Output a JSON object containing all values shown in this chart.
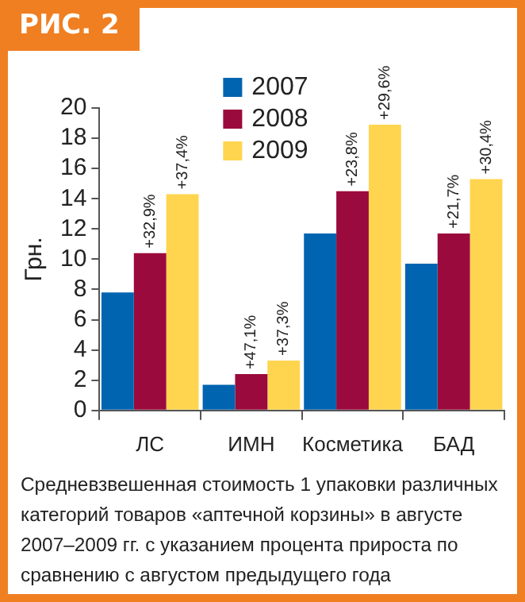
{
  "chart_data": {
    "type": "bar",
    "title": "РИС. 2",
    "ylabel": "Грн.",
    "categories": [
      "ЛС",
      "ИМН",
      "Косметика",
      "БАД"
    ],
    "series": [
      {
        "name": "2007",
        "color": "#0064b0",
        "values": [
          7.8,
          1.7,
          11.7,
          9.7
        ]
      },
      {
        "name": "2008",
        "color": "#9b0a3c",
        "values": [
          10.4,
          2.4,
          14.5,
          11.7
        ]
      },
      {
        "name": "2009",
        "color": "#ffd54f",
        "values": [
          14.3,
          3.3,
          18.9,
          15.3
        ]
      }
    ],
    "ylim": [
      0,
      20
    ],
    "yticks": [
      0,
      2,
      4,
      6,
      8,
      10,
      12,
      14,
      16,
      18,
      20
    ],
    "grid": false,
    "legend": "top",
    "annotations": [
      "+32,9%",
      "+37,4%",
      "+47,1%",
      "+37,3%",
      "+23,8%",
      "+29,6%",
      "+21,7%",
      "+30,4%",
      "Средневзвешенная стоимость 1 упаковки различных категорий товаров «аптечной корзины» в августе 2007–2009 гг. с указанием процента прироста по сравнению с августом предыдущего года"
    ]
  }
}
